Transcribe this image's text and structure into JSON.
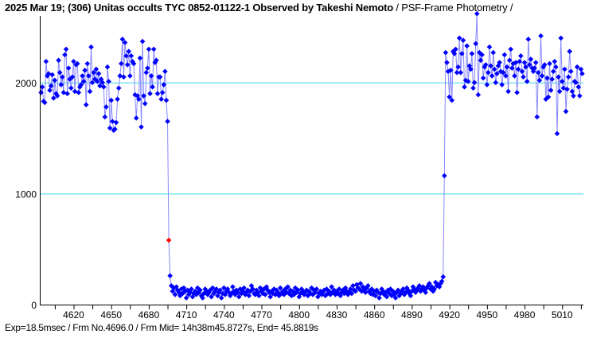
{
  "title": {
    "main": "2025 Mar 19; (306) Unitas occults TYC 0852-01122-1 Observed by Takeshi Nemoto",
    "method": " / PSF-Frame Photometry /"
  },
  "footer": "Exp=18.5msec / Frm No.4696.0 / Frm Mid= 14h38m45.8727s,  End= 45.8819s",
  "colors": {
    "marker": "#0000ff",
    "highlight": "#ff0000",
    "line": "#8888ff",
    "grid": "#3cd7e6",
    "axis": "#000000"
  },
  "chart_data": {
    "type": "line",
    "xlabel": "",
    "ylabel": "",
    "xlim": [
      4593,
      5027
    ],
    "ylim": [
      0,
      2600
    ],
    "xticks": [
      4620,
      4650,
      4680,
      4710,
      4740,
      4770,
      4800,
      4830,
      4860,
      4890,
      4920,
      4950,
      4980,
      5010
    ],
    "xtick_labels": [
      "4620",
      "4650",
      "4680",
      "4710",
      "4740",
      "4770",
      "4800",
      "4830",
      "4860",
      "4890",
      "4920",
      "4950",
      "4980",
      "5010"
    ],
    "yticks": [
      0,
      1000,
      2000
    ],
    "ytick_labels": [
      "0",
      "1000",
      "2000"
    ],
    "grid": "horizontal at 1000 and 2000",
    "highlight_frame": 4696,
    "x_start": 4594,
    "values": [
      1910,
      1960,
      1830,
      1820,
      2190,
      2060,
      2080,
      1930,
      1970,
      2070,
      1860,
      2020,
      1900,
      1880,
      2200,
      2090,
      1980,
      2050,
      1910,
      2250,
      2300,
      1900,
      2130,
      2030,
      1950,
      2050,
      2190,
      1920,
      2160,
      2170,
      1910,
      1960,
      1980,
      2060,
      2010,
      2110,
      1800,
      2170,
      2060,
      1920,
      2320,
      2000,
      2090,
      2030,
      2120,
      2010,
      2080,
      1970,
      2030,
      2000,
      1960,
      1690,
      1780,
      2140,
      2010,
      1590,
      1840,
      1650,
      1570,
      1580,
      1640,
      1850,
      1950,
      2060,
      2170,
      2390,
      2050,
      2360,
      2240,
      2160,
      2280,
      2060,
      2240,
      2190,
      2170,
      1890,
      1680,
      1880,
      1850,
      2220,
      1600,
      2370,
      1880,
      1810,
      2090,
      2130,
      2300,
      1900,
      2060,
      1960,
      2300,
      2180,
      2200,
      1900,
      2050,
      2050,
      1850,
      1910,
      1980,
      2100,
      1840,
      1650,
      580,
      260,
      170,
      120,
      150,
      90,
      160,
      130,
      110,
      80,
      140,
      100,
      150,
      120,
      60,
      130,
      90,
      110,
      140,
      70,
      100,
      120,
      90,
      150,
      110,
      130,
      80,
      60,
      100,
      140,
      120,
      90,
      110,
      130,
      70,
      150,
      100,
      120,
      140,
      80,
      110,
      130,
      60,
      100,
      150,
      90,
      120,
      140,
      110,
      80,
      100,
      160,
      120,
      90,
      130,
      110,
      70,
      140,
      100,
      120,
      150,
      90,
      110,
      130,
      80,
      120,
      170,
      140,
      100,
      90,
      130,
      110,
      80,
      150,
      120,
      100,
      140,
      90,
      160,
      130,
      110,
      70,
      120,
      100,
      140,
      90,
      130,
      110,
      80,
      150,
      100,
      120,
      90,
      140,
      110,
      160,
      100,
      130,
      80,
      120,
      90,
      150,
      110,
      130,
      70,
      100,
      140,
      120,
      90,
      110,
      130,
      80,
      120,
      100,
      150,
      90,
      130,
      110,
      140,
      70,
      100,
      120,
      90,
      110,
      130,
      80,
      140,
      100,
      120,
      90,
      160,
      110,
      130,
      90,
      120,
      100,
      140,
      80,
      110,
      130,
      100,
      150,
      120,
      90,
      110,
      140,
      100,
      170,
      130,
      120,
      180,
      150,
      140,
      190,
      120,
      160,
      130,
      110,
      150,
      170,
      120,
      100,
      140,
      90,
      120,
      80,
      130,
      110,
      60,
      100,
      140,
      120,
      90,
      110,
      70,
      130,
      100,
      140,
      80,
      120,
      90,
      60,
      110,
      130,
      80,
      100,
      120,
      140,
      90,
      110,
      150,
      130,
      100,
      80,
      120,
      160,
      140,
      110,
      130,
      150,
      170,
      120,
      140,
      160,
      130,
      110,
      150,
      170,
      190,
      140,
      160,
      120,
      140,
      200,
      170,
      180,
      160,
      190,
      210,
      250,
      1160,
      2270,
      2180,
      2100,
      1870,
      2110,
      1840,
      2280,
      2260,
      2300,
      2090,
      2140,
      2400,
      2090,
      2260,
      2380,
      1960,
      2020,
      2330,
      2010,
      2150,
      2120,
      2260,
      1950,
      2000,
      2350,
      2620,
      1890,
      2270,
      2200,
      2250,
      2040,
      2140,
      2160,
      1980,
      2090,
      2320,
      2150,
      2060,
      2270,
      2120,
      2000,
      2080,
      2150,
      2180,
      2100,
      1980,
      2090,
      2250,
      2060,
      2140,
      1920,
      2200,
      2300,
      2130,
      2170,
      2060,
      2180,
      1910,
      2120,
      2190,
      2240,
      2100,
      2050,
      2180,
      2140,
      2010,
      2390,
      2160,
      2210,
      2130,
      2100,
      2130,
      2180,
      1690,
      2090,
      2020,
      2420,
      2060,
      2140,
      2160,
      1850,
      2040,
      1870,
      2170,
      1930,
      2030,
      2100,
      2190,
      2140,
      1540,
      2050,
      1920,
      2400,
      2010,
      1950,
      2120,
      1740,
      1940,
      2050,
      2280,
      2100,
      1920,
      1880,
      2010,
      2000,
      2140,
      1960,
      1880,
      2120,
      2080
    ]
  }
}
